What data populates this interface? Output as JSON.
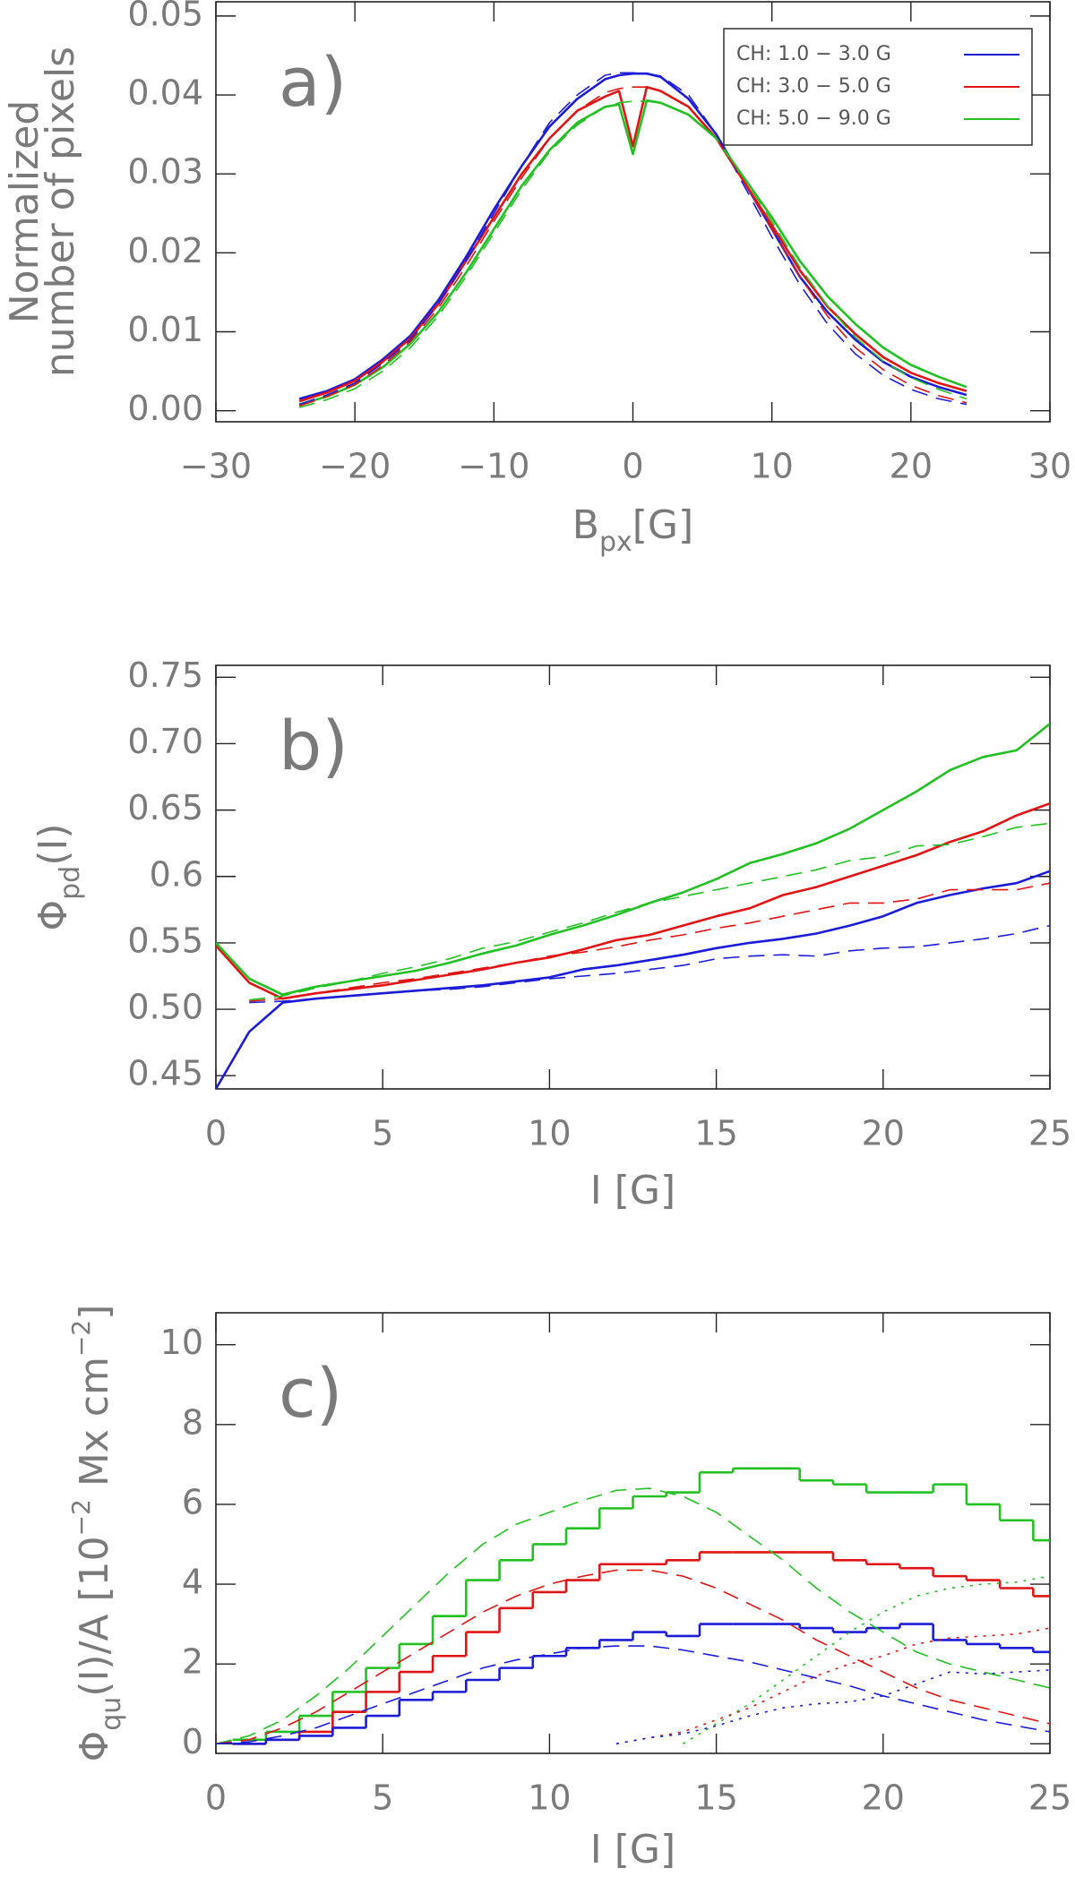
{
  "chart_data": [
    {
      "type": "line",
      "annotation": "a)",
      "xlabel": [
        {
          "text": "B"
        },
        {
          "text": "px",
          "shift": "sub"
        },
        {
          "text": "[G]"
        }
      ],
      "ylabel": [
        [
          {
            "text": "Normalized"
          }
        ],
        [
          {
            "text": "number of pixels"
          }
        ]
      ],
      "xlim": [
        -30,
        30
      ],
      "ylim": [
        -0.0014,
        0.0518
      ],
      "xticks": [
        {
          "value": -30,
          "label": "−30"
        },
        {
          "value": -20,
          "label": "−20"
        },
        {
          "value": -10,
          "label": "−10"
        },
        0,
        10,
        20,
        30
      ],
      "yticks": [
        {
          "value": 0,
          "label": "0.00"
        },
        {
          "value": 0.01,
          "label": "0.01"
        },
        {
          "value": 0.02,
          "label": "0.02"
        },
        {
          "value": 0.03,
          "label": "0.03"
        },
        {
          "value": 0.04,
          "label": "0.04"
        },
        {
          "value": 0.05,
          "label": "0.05"
        }
      ],
      "legend": "upper right",
      "x": [
        -24,
        -22,
        -20,
        -18,
        -16,
        -14,
        -12,
        -10,
        -8,
        -6,
        -4,
        -2,
        -1,
        0,
        1,
        2,
        4,
        6,
        8,
        10,
        12,
        14,
        16,
        18,
        20,
        22,
        24
      ],
      "series": [
        {
          "name": "CH: 1.0 − 3.0 G",
          "color": "#1c1cd8",
          "style": "solid",
          "values": [
            0.0015,
            0.0025,
            0.004,
            0.0065,
            0.0095,
            0.014,
            0.0195,
            0.0255,
            0.031,
            0.036,
            0.0395,
            0.042,
            0.0425,
            0.0427,
            0.0427,
            0.0423,
            0.0395,
            0.035,
            0.029,
            0.023,
            0.017,
            0.0125,
            0.009,
            0.0062,
            0.0043,
            0.003,
            0.002
          ]
        },
        {
          "name": "CH: 3.0 − 5.0 G",
          "color": "#e01414",
          "style": "solid",
          "values": [
            0.0012,
            0.0023,
            0.0038,
            0.0062,
            0.0092,
            0.0135,
            0.019,
            0.0245,
            0.03,
            0.0345,
            0.038,
            0.0398,
            0.0405,
            0.0335,
            0.041,
            0.0405,
            0.0385,
            0.0345,
            0.029,
            0.0235,
            0.0178,
            0.0132,
            0.0097,
            0.0068,
            0.0048,
            0.0035,
            0.0025
          ]
        },
        {
          "name": "CH: 5.0 − 9.0 G",
          "color": "#22c022",
          "style": "solid",
          "values": [
            0.0008,
            0.0018,
            0.0033,
            0.0055,
            0.0085,
            0.0125,
            0.0175,
            0.023,
            0.0285,
            0.033,
            0.0365,
            0.0385,
            0.0388,
            0.0325,
            0.0393,
            0.039,
            0.0375,
            0.0345,
            0.0295,
            0.0245,
            0.019,
            0.0145,
            0.011,
            0.008,
            0.0058,
            0.0043,
            0.003
          ]
        },
        {
          "color": "#1c1cd8",
          "style": "dashed",
          "values": [
            0.0008,
            0.002,
            0.0035,
            0.006,
            0.009,
            0.0135,
            0.019,
            0.025,
            0.031,
            0.0365,
            0.04,
            0.0425,
            0.0428,
            0.0428,
            0.0427,
            0.0424,
            0.04,
            0.035,
            0.0285,
            0.022,
            0.016,
            0.011,
            0.0072,
            0.0045,
            0.0027,
            0.0015,
            0.0008
          ]
        },
        {
          "color": "#e01414",
          "style": "dashed",
          "values": [
            0.0006,
            0.0018,
            0.0033,
            0.0057,
            0.0088,
            0.013,
            0.0183,
            0.024,
            0.0295,
            0.0345,
            0.038,
            0.0403,
            0.0408,
            0.041,
            0.041,
            0.0405,
            0.0385,
            0.0345,
            0.029,
            0.023,
            0.017,
            0.012,
            0.008,
            0.0052,
            0.0032,
            0.0019,
            0.001
          ]
        },
        {
          "color": "#22c022",
          "style": "dashed",
          "values": [
            0.0004,
            0.0014,
            0.0028,
            0.005,
            0.008,
            0.012,
            0.017,
            0.0225,
            0.028,
            0.0328,
            0.0362,
            0.0385,
            0.039,
            0.0392,
            0.0392,
            0.039,
            0.0375,
            0.0345,
            0.0295,
            0.024,
            0.0182,
            0.0133,
            0.0093,
            0.0063,
            0.0042,
            0.0027,
            0.0015
          ]
        }
      ]
    },
    {
      "type": "line",
      "annotation": "b)",
      "xlabel": [
        {
          "text": "I [G]"
        }
      ],
      "ylabel": [
        [
          {
            "text": "Φ"
          },
          {
            "text": "pd",
            "shift": "sub"
          },
          {
            "text": "(I)"
          }
        ]
      ],
      "xlim": [
        0,
        25
      ],
      "ylim": [
        0.44,
        0.759
      ],
      "xticks": [
        0,
        5,
        10,
        15,
        20,
        25
      ],
      "yticks": [
        0.45,
        {
          "value": 0.5,
          "label": "0.50"
        },
        0.55,
        0.6,
        0.65,
        {
          "value": 0.7,
          "label": "0.70"
        },
        0.75
      ],
      "x": [
        0,
        1,
        2,
        3,
        4,
        5,
        6,
        7,
        8,
        9,
        10,
        11,
        12,
        13,
        14,
        15,
        16,
        17,
        18,
        19,
        20,
        21,
        22,
        23,
        24,
        25
      ],
      "series": [
        {
          "color": "#1c1cd8",
          "style": "solid",
          "values": [
            0.44,
            0.483,
            0.505,
            0.508,
            0.51,
            0.512,
            0.514,
            0.516,
            0.518,
            0.521,
            0.524,
            0.53,
            0.533,
            0.537,
            0.541,
            0.546,
            0.55,
            0.553,
            0.557,
            0.563,
            0.57,
            0.58,
            0.586,
            0.591,
            0.595,
            0.604
          ]
        },
        {
          "color": "#e01414",
          "style": "solid",
          "values": [
            0.548,
            0.52,
            0.508,
            0.512,
            0.515,
            0.518,
            0.522,
            0.526,
            0.53,
            0.535,
            0.539,
            0.545,
            0.552,
            0.556,
            0.563,
            0.57,
            0.576,
            0.586,
            0.592,
            0.6,
            0.608,
            0.616,
            0.626,
            0.634,
            0.646,
            0.655
          ]
        },
        {
          "color": "#22c022",
          "style": "solid",
          "values": [
            0.55,
            0.523,
            0.511,
            0.517,
            0.521,
            0.525,
            0.529,
            0.535,
            0.542,
            0.548,
            0.556,
            0.563,
            0.571,
            0.58,
            0.588,
            0.598,
            0.61,
            0.617,
            0.625,
            0.636,
            0.65,
            0.664,
            0.68,
            0.69,
            0.695,
            0.715
          ]
        },
        {
          "color": "#1c1cd8",
          "style": "dashed",
          "values": [
            null,
            0.505,
            0.506,
            0.508,
            0.51,
            0.512,
            0.514,
            0.515,
            0.517,
            0.52,
            0.523,
            0.525,
            0.527,
            0.53,
            0.533,
            0.538,
            0.54,
            0.541,
            0.54,
            0.544,
            0.546,
            0.547,
            0.55,
            0.553,
            0.557,
            0.563
          ]
        },
        {
          "color": "#e01414",
          "style": "dashed",
          "values": [
            null,
            0.506,
            0.508,
            0.512,
            0.516,
            0.52,
            0.523,
            0.527,
            0.531,
            0.535,
            0.54,
            0.543,
            0.547,
            0.552,
            0.556,
            0.561,
            0.565,
            0.57,
            0.575,
            0.58,
            0.58,
            0.583,
            0.59,
            0.59,
            0.59,
            0.595
          ]
        },
        {
          "color": "#22c022",
          "style": "dashed",
          "values": [
            null,
            0.507,
            0.51,
            0.516,
            0.521,
            0.527,
            0.532,
            0.538,
            0.546,
            0.551,
            0.558,
            0.565,
            0.573,
            0.58,
            0.585,
            0.59,
            0.595,
            0.6,
            0.605,
            0.612,
            0.615,
            0.623,
            0.624,
            0.63,
            0.637,
            0.64
          ]
        }
      ]
    },
    {
      "type": "line",
      "annotation": "c)",
      "xlabel": [
        {
          "text": "I [G]"
        }
      ],
      "ylabel": [
        [
          {
            "text": "Φ"
          },
          {
            "text": "qu",
            "shift": "sub"
          },
          {
            "text": "(I)/A [10"
          },
          {
            "text": "−2",
            "shift": "sup"
          },
          {
            "text": " Mx cm"
          },
          {
            "text": "−2",
            "shift": "sup"
          },
          {
            "text": "]"
          }
        ]
      ],
      "xlim": [
        0,
        25
      ],
      "ylim": [
        -0.24,
        10.8
      ],
      "xticks": [
        0,
        5,
        10,
        15,
        20,
        25
      ],
      "yticks": [
        0,
        2,
        4,
        6,
        8,
        10
      ],
      "x": [
        0,
        1,
        2,
        3,
        4,
        5,
        6,
        7,
        8,
        9,
        10,
        11,
        12,
        13,
        14,
        15,
        16,
        17,
        18,
        19,
        20,
        21,
        22,
        23,
        24,
        25
      ],
      "series": [
        {
          "color": "#22c022",
          "style": "steps",
          "x": [
            1,
            2,
            3,
            4,
            5,
            6,
            7,
            8,
            9,
            10,
            11,
            12,
            13,
            14,
            15,
            16,
            17,
            18,
            19,
            20,
            21,
            22,
            23,
            24,
            25
          ],
          "values": [
            0.1,
            0.3,
            0.7,
            1.3,
            1.9,
            2.5,
            3.2,
            4.1,
            4.6,
            5.0,
            5.4,
            5.9,
            6.2,
            6.3,
            6.8,
            6.9,
            6.9,
            6.6,
            6.5,
            6.3,
            6.3,
            6.5,
            6.0,
            5.6,
            5.1
          ]
        },
        {
          "color": "#e01414",
          "style": "steps",
          "x": [
            1,
            2,
            3,
            4,
            5,
            6,
            7,
            8,
            9,
            10,
            11,
            12,
            13,
            14,
            15,
            16,
            17,
            18,
            19,
            20,
            21,
            22,
            23,
            24,
            25
          ],
          "values": [
            0.0,
            0.1,
            0.3,
            0.8,
            1.3,
            1.8,
            2.2,
            2.8,
            3.4,
            3.8,
            4.1,
            4.5,
            4.5,
            4.6,
            4.8,
            4.8,
            4.8,
            4.8,
            4.6,
            4.5,
            4.4,
            4.2,
            4.1,
            3.9,
            3.7
          ]
        },
        {
          "color": "#1c1cd8",
          "style": "steps",
          "x": [
            1,
            2,
            3,
            4,
            5,
            6,
            7,
            8,
            9,
            10,
            11,
            12,
            13,
            14,
            15,
            16,
            17,
            18,
            19,
            20,
            21,
            22,
            23,
            24,
            25
          ],
          "values": [
            0.0,
            0.1,
            0.2,
            0.4,
            0.7,
            1.1,
            1.3,
            1.6,
            1.9,
            2.2,
            2.4,
            2.6,
            2.8,
            2.7,
            3.0,
            3.0,
            3.0,
            2.9,
            2.8,
            2.9,
            3.0,
            2.6,
            2.5,
            2.4,
            2.3
          ]
        },
        {
          "color": "#22c022",
          "style": "dashed",
          "values": [
            0,
            0.2,
            0.6,
            1.2,
            1.9,
            2.7,
            3.5,
            4.3,
            5.0,
            5.5,
            5.8,
            6.1,
            6.35,
            6.4,
            6.2,
            5.8,
            5.2,
            4.6,
            3.9,
            3.3,
            2.8,
            2.3,
            2.0,
            1.8,
            1.6,
            1.4
          ]
        },
        {
          "color": "#e01414",
          "style": "dashed",
          "values": [
            0,
            0.1,
            0.4,
            0.8,
            1.3,
            1.8,
            2.3,
            2.8,
            3.3,
            3.7,
            4.0,
            4.2,
            4.35,
            4.35,
            4.2,
            3.9,
            3.5,
            3.1,
            2.6,
            2.2,
            1.8,
            1.4,
            1.1,
            0.9,
            0.7,
            0.5
          ]
        },
        {
          "color": "#1c1cd8",
          "style": "dashed",
          "values": [
            0,
            0.05,
            0.2,
            0.4,
            0.7,
            1.0,
            1.3,
            1.6,
            1.9,
            2.1,
            2.25,
            2.4,
            2.45,
            2.45,
            2.35,
            2.2,
            2.05,
            1.85,
            1.65,
            1.45,
            1.2,
            1.0,
            0.8,
            0.6,
            0.45,
            0.3
          ]
        },
        {
          "color": "#22c022",
          "style": "dotted",
          "x": [
            14,
            15,
            16,
            17,
            18,
            19,
            20,
            21,
            22,
            23,
            24,
            25
          ],
          "values": [
            0,
            0.5,
            1.0,
            1.6,
            2.2,
            2.8,
            3.3,
            3.7,
            3.9,
            4.0,
            4.05,
            4.2
          ]
        },
        {
          "color": "#e01414",
          "style": "dotted",
          "x": [
            12,
            13,
            14,
            15,
            16,
            17,
            18,
            19,
            20,
            21,
            22,
            23,
            24,
            25
          ],
          "values": [
            0,
            0.15,
            0.3,
            0.6,
            0.9,
            1.3,
            1.7,
            2.0,
            2.2,
            2.5,
            2.65,
            2.7,
            2.75,
            2.9
          ]
        },
        {
          "color": "#1c1cd8",
          "style": "dotted",
          "x": [
            12,
            13,
            14,
            15,
            16,
            17,
            18,
            19,
            20,
            21,
            22,
            23,
            24,
            25
          ],
          "values": [
            0,
            0.15,
            0.25,
            0.45,
            0.7,
            0.9,
            1.0,
            1.05,
            1.2,
            1.5,
            1.8,
            1.75,
            1.8,
            1.85
          ]
        }
      ]
    }
  ]
}
